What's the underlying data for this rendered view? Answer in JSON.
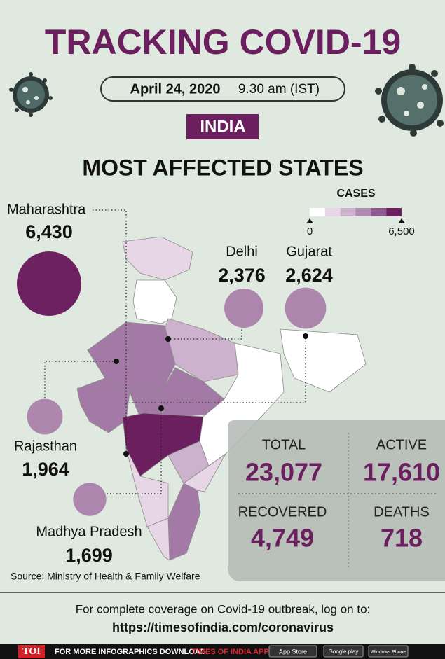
{
  "header": {
    "title": "TRACKING COVID-19",
    "date": "April 24, 2020",
    "time": "9.30 am (IST)",
    "country": "INDIA",
    "subtitle": "MOST AFFECTED STATES"
  },
  "scale": {
    "title": "CASES",
    "colors": [
      "#ffffff",
      "#e6d6e6",
      "#cdb2cd",
      "#b08bb1",
      "#8e5a8f",
      "#6b1f5e"
    ],
    "min": 0,
    "max": {
      "value": 6500,
      "label": "6,500"
    }
  },
  "states": [
    {
      "name": "Maharashtra",
      "value": 6430,
      "label": "6,430",
      "color": "#6d2160"
    },
    {
      "name": "Delhi",
      "value": 2376,
      "label": "2,376",
      "color": "#ad86ad"
    },
    {
      "name": "Gujarat",
      "value": 2624,
      "label": "2,624",
      "color": "#ad86ad"
    },
    {
      "name": "Rajasthan",
      "value": 1964,
      "label": "1,964",
      "color": "#ad86ad"
    },
    {
      "name": "Madhya Pradesh",
      "value": 1699,
      "label": "1,699",
      "color": "#ad86ad"
    }
  ],
  "stats": [
    {
      "label": "TOTAL",
      "value": "23,077"
    },
    {
      "label": "ACTIVE",
      "value": "17,610"
    },
    {
      "label": "RECOVERED",
      "value": "4,749"
    },
    {
      "label": "DEATHS",
      "value": "718"
    }
  ],
  "source": "Source: Ministry of Health & Family Welfare",
  "footer": {
    "note": "For complete coverage on Covid-19 outbreak, log on to:",
    "link": "https://timesofindia.com/coronavirus"
  },
  "bar": {
    "logo": "TOI",
    "text": "FOR MORE INFOGRAPHICS DOWNLOAD",
    "app": "TIMES OF INDIA APP",
    "stores": [
      "App Store",
      "Google play",
      "Windows Phone"
    ]
  }
}
